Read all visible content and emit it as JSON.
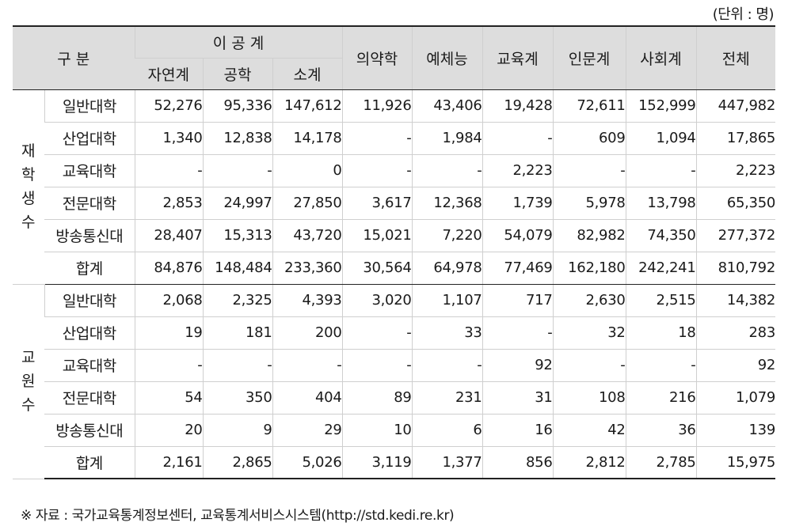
{
  "unit": "(단위 : 명)",
  "header": {
    "category": "구  분",
    "science_group": "이 공 계",
    "sub": [
      "자연계",
      "공학",
      "소계"
    ],
    "others": [
      "의약학",
      "예체능",
      "교육계",
      "인문계",
      "사회계",
      "전체"
    ]
  },
  "sections": [
    {
      "group_chars": [
        "재",
        "학",
        "생",
        "수"
      ],
      "rows": [
        {
          "label": "일반대학",
          "values": [
            "52,276",
            "95,336",
            "147,612",
            "11,926",
            "43,406",
            "19,428",
            "72,611",
            "152,999",
            "447,982"
          ]
        },
        {
          "label": "산업대학",
          "values": [
            "1,340",
            "12,838",
            "14,178",
            "-",
            "1,984",
            "-",
            "609",
            "1,094",
            "17,865"
          ]
        },
        {
          "label": "교육대학",
          "values": [
            "-",
            "-",
            "0",
            "-",
            "-",
            "2,223",
            "-",
            "-",
            "2,223"
          ]
        },
        {
          "label": "전문대학",
          "values": [
            "2,853",
            "24,997",
            "27,850",
            "3,617",
            "12,368",
            "1,739",
            "5,978",
            "13,798",
            "65,350"
          ]
        },
        {
          "label": "방송통신대",
          "values": [
            "28,407",
            "15,313",
            "43,720",
            "15,021",
            "7,220",
            "54,079",
            "82,982",
            "74,350",
            "277,372"
          ]
        },
        {
          "label": "합계",
          "values": [
            "84,876",
            "148,484",
            "233,360",
            "30,564",
            "64,978",
            "77,469",
            "162,180",
            "242,241",
            "810,792"
          ]
        }
      ]
    },
    {
      "group_chars": [
        "교",
        "원",
        "수"
      ],
      "rows": [
        {
          "label": "일반대학",
          "values": [
            "2,068",
            "2,325",
            "4,393",
            "3,020",
            "1,107",
            "717",
            "2,630",
            "2,515",
            "14,382"
          ]
        },
        {
          "label": "산업대학",
          "values": [
            "19",
            "181",
            "200",
            "-",
            "33",
            "-",
            "32",
            "18",
            "283"
          ]
        },
        {
          "label": "교육대학",
          "values": [
            "-",
            "-",
            "-",
            "-",
            "-",
            "92",
            "-",
            "-",
            "92"
          ]
        },
        {
          "label": "전문대학",
          "values": [
            "54",
            "350",
            "404",
            "89",
            "231",
            "31",
            "108",
            "216",
            "1,079"
          ]
        },
        {
          "label": "방송통신대",
          "values": [
            "20",
            "9",
            "29",
            "10",
            "6",
            "16",
            "42",
            "36",
            "139"
          ]
        },
        {
          "label": "합계",
          "values": [
            "2,161",
            "2,865",
            "5,026",
            "3,119",
            "1,377",
            "856",
            "2,812",
            "2,785",
            "15,975"
          ]
        }
      ]
    }
  ],
  "source": "※  자료  :  국가교육통계정보센터,  교육통계서비스시스템(http://std.kedi.re.kr)"
}
